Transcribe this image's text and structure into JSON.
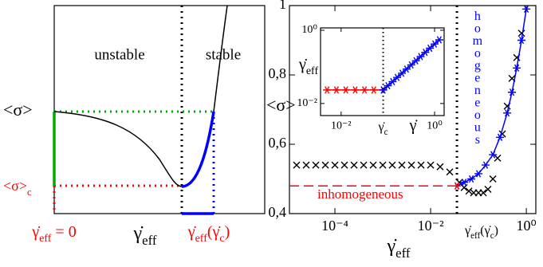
{
  "schematic": {
    "unstable": "unstable",
    "stable": "stable",
    "sigma": "<σ>",
    "sigma_c": [
      "<σ>",
      "c"
    ],
    "gamma_eff_zero": [
      "γ̇",
      "eff",
      " = 0"
    ],
    "gamma_eff": [
      "γ̇",
      "eff"
    ],
    "gamma_eff_c": [
      "γ̇",
      "eff",
      "(γ̇",
      "c",
      ")"
    ]
  },
  "chart_data": [
    {
      "type": "line",
      "xscale": "log",
      "yscale": "linear",
      "xlim": [
        1.12e-05,
        1.58
      ],
      "ylim": [
        0.4,
        1
      ],
      "xticks": [
        {
          "value": 0.0001,
          "label": "10⁻⁴"
        },
        {
          "value": 0.01,
          "label": "10⁻²"
        },
        {
          "value": 1,
          "label": "10⁰"
        }
      ],
      "yticks": [
        {
          "value": 0.4,
          "label": "0,4"
        },
        {
          "value": 0.6,
          "label": "0,6"
        },
        {
          "value": 0.8,
          "label": "0,8"
        },
        1
      ],
      "ylabel": "<σ>",
      "xlabel": [
        "γ̇",
        "eff"
      ],
      "xline": 0.0355,
      "xline_label": [
        "γ̇",
        "eff",
        "(γ̇",
        "c",
        ")"
      ],
      "homogeneous": "homogeneous",
      "inhomogeneous": "inhomogeneous",
      "series": [
        {
          "color": "#000000",
          "line": "none",
          "marker": "x",
          "x": [
            1.58e-05,
            2.51e-05,
            3.98e-05,
            6.31e-05,
            0.0001,
            0.000158,
            0.000251,
            0.000398,
            0.000631,
            0.001,
            0.00158,
            0.00251,
            0.00398,
            0.00631,
            0.01,
            0.0158,
            0.0251,
            0.0398,
            0.0501,
            0.0631,
            0.0794,
            0.1,
            0.126,
            0.158,
            0.2,
            0.251,
            0.316,
            0.398,
            0.501,
            0.631,
            0.794
          ],
          "values": [
            0.54,
            0.54,
            0.54,
            0.54,
            0.54,
            0.54,
            0.54,
            0.54,
            0.54,
            0.54,
            0.54,
            0.54,
            0.54,
            0.54,
            0.54,
            0.535,
            0.52,
            0.49,
            0.475,
            0.465,
            0.46,
            0.46,
            0.46,
            0.47,
            0.5,
            0.56,
            0.63,
            0.71,
            0.79,
            0.85,
            0.92
          ]
        },
        {
          "color": "#0000ff",
          "line": "solid",
          "marker": "*",
          "x": [
            0.0355,
            0.0501,
            0.0708,
            0.1,
            0.141,
            0.2,
            0.282,
            0.398,
            0.501,
            0.631,
            0.794,
            1.0
          ],
          "values": [
            0.48,
            0.49,
            0.5,
            0.515,
            0.54,
            0.57,
            0.62,
            0.69,
            0.75,
            0.82,
            0.9,
            0.99
          ]
        },
        {
          "color": "#ff0000",
          "line": "dashed",
          "marker": "none",
          "x": [
            1.12e-05,
            0.0355
          ],
          "values": [
            0.48,
            0.48
          ]
        },
        {
          "color": "#ff0000",
          "line": "none",
          "marker": "*",
          "x": [
            0.0355
          ],
          "values": [
            0.48
          ]
        }
      ]
    },
    {
      "type": "line",
      "xscale": "log",
      "yscale": "log",
      "xlim": [
        0.00363,
        1.6
      ],
      "ylim": [
        0.00468,
        1.16
      ],
      "xticks": [
        {
          "value": 0.01,
          "label": "10⁻²"
        },
        {
          "value": 1,
          "label": "10⁰"
        }
      ],
      "yticks": [
        {
          "value": 0.01,
          "label": "10⁻²"
        },
        {
          "value": 1,
          "label": "10⁰"
        }
      ],
      "ylabel": [
        "γ̇",
        "eff"
      ],
      "xlabel": "γ̇",
      "xline": 0.0794,
      "xline_label": [
        "γ̇",
        "c"
      ],
      "series": [
        {
          "color": "#ff0000",
          "line": "solid",
          "marker": "*",
          "x": [
            0.005,
            0.00794,
            0.0126,
            0.02,
            0.0316,
            0.0501,
            0.0794
          ],
          "values": [
            0.0234,
            0.0234,
            0.0234,
            0.0234,
            0.0234,
            0.0234,
            0.0234
          ]
        },
        {
          "color": "#0000ff",
          "line": "solid",
          "marker": "*",
          "x": [
            0.0794,
            0.1,
            0.126,
            0.158,
            0.2,
            0.251,
            0.316,
            0.398,
            0.501,
            0.631,
            0.794,
            1.0,
            1.26
          ],
          "values": [
            0.0234,
            0.0305,
            0.0396,
            0.0515,
            0.067,
            0.0871,
            0.113,
            0.147,
            0.191,
            0.249,
            0.324,
            0.421,
            0.547
          ]
        }
      ]
    }
  ]
}
